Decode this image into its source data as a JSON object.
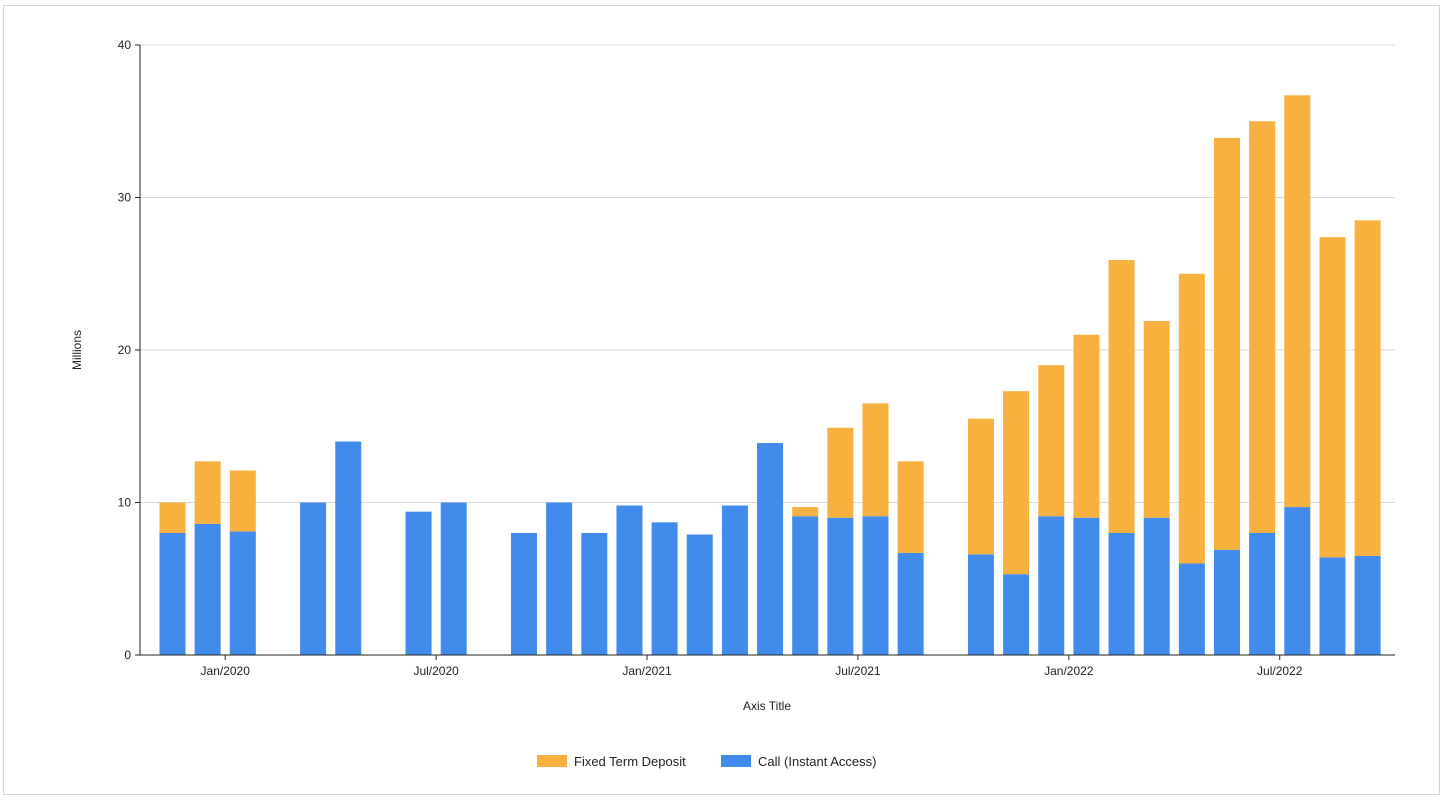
{
  "chart_data": {
    "type": "bar",
    "stacked": true,
    "ylabel": "Millions",
    "xlabel": "Axis Title",
    "ylim": [
      0,
      40
    ],
    "y_ticks": [
      0,
      10,
      20,
      30,
      40
    ],
    "grid": true,
    "legend_position": "bottom",
    "x_tick_labels": [
      "Jan/2020",
      "Jul/2020",
      "Jan/2021",
      "Jul/2021",
      "Jan/2022",
      "Jul/2022"
    ],
    "x_tick_dates": [
      "2020-01",
      "2020-07",
      "2021-01",
      "2021-07",
      "2022-01",
      "2022-07"
    ],
    "categories": [
      "2019-11",
      "2019-12",
      "2020-01",
      "2020-02",
      "2020-03",
      "2020-04",
      "2020-05",
      "2020-06",
      "2020-07",
      "2020-08",
      "2020-09",
      "2020-10",
      "2020-11",
      "2020-12",
      "2021-01",
      "2021-02",
      "2021-03",
      "2021-04",
      "2021-05",
      "2021-06",
      "2021-07",
      "2021-08",
      "2021-09",
      "2021-10",
      "2021-11",
      "2021-12",
      "2022-01",
      "2022-02",
      "2022-03",
      "2022-04",
      "2022-05",
      "2022-06",
      "2022-07",
      "2022-08",
      "2022-09"
    ],
    "series": [
      {
        "name": "Call (Instant Access)",
        "color": "#418bec",
        "values": [
          8.0,
          8.6,
          8.1,
          null,
          10.0,
          14.0,
          null,
          9.4,
          10.0,
          null,
          8.0,
          10.0,
          8.0,
          9.8,
          8.7,
          7.9,
          9.8,
          13.9,
          9.1,
          9.0,
          9.1,
          6.7,
          null,
          6.6,
          5.3,
          9.1,
          9.0,
          8.0,
          9.0,
          6.0,
          6.9,
          8.0,
          9.7,
          6.4,
          6.5
        ]
      },
      {
        "name": "Fixed Term Deposit",
        "color": "#f8b13e",
        "values": [
          2.0,
          4.1,
          4.0,
          null,
          null,
          null,
          null,
          null,
          null,
          null,
          null,
          null,
          null,
          null,
          null,
          null,
          null,
          null,
          0.6,
          5.9,
          7.4,
          6.0,
          null,
          8.9,
          12.0,
          9.9,
          12.0,
          17.9,
          12.9,
          19.0,
          27.0,
          27.0,
          27.0,
          21.0,
          22.0
        ]
      }
    ]
  }
}
